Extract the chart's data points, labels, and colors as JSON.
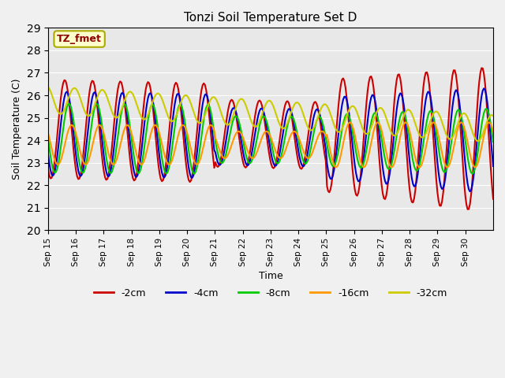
{
  "title": "Tonzi Soil Temperature Set D",
  "xlabel": "Time",
  "ylabel": "Soil Temperature (C)",
  "ylim": [
    20.0,
    29.0
  ],
  "yticks": [
    20.0,
    21.0,
    22.0,
    23.0,
    24.0,
    25.0,
    26.0,
    27.0,
    28.0,
    29.0
  ],
  "xtick_labels": [
    "Sep 15",
    "Sep 16",
    "Sep 17",
    "Sep 18",
    "Sep 19",
    "Sep 20",
    "Sep 21",
    "Sep 22",
    "Sep 23",
    "Sep 24",
    "Sep 25",
    "Sep 26",
    "Sep 27",
    "Sep 28",
    "Sep 29",
    "Sep 30"
  ],
  "colors": {
    "-2cm": "#cc0000",
    "-4cm": "#0000cc",
    "-8cm": "#00cc00",
    "-16cm": "#ff9900",
    "-32cm": "#cccc00"
  },
  "legend_label": "TZ_fmet",
  "legend_bg": "#ffffcc",
  "legend_border": "#aaaa00",
  "axes_bg": "#e8e8e8",
  "linewidth": 1.5
}
